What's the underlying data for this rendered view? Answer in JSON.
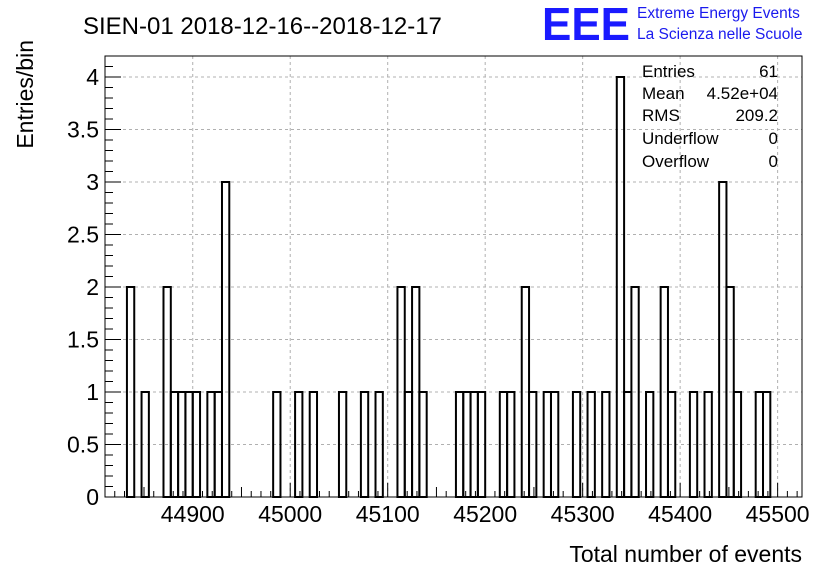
{
  "logo": {
    "mark": "EEE",
    "line1": "Extreme Energy Events",
    "line2": "La Scienza nelle Scuole",
    "color": "#1a1aff"
  },
  "stats": {
    "entries_label": "Entries",
    "entries_value": "61",
    "mean_label": "Mean",
    "mean_value": "4.52e+04",
    "rms_label": "RMS",
    "rms_value": "209.2",
    "underflow_label": "Underflow",
    "underflow_value": "0",
    "overflow_label": "Overflow",
    "overflow_value": "0"
  },
  "chart_data": {
    "type": "bar",
    "title": "SIEN-01 2018-12-16--2018-12-17",
    "xlabel": "Total number of events",
    "ylabel": "Entries/bin",
    "xlim": [
      44810,
      45525
    ],
    "ylim": [
      0,
      4.2
    ],
    "grid": true,
    "xticks": [
      44900,
      45000,
      45100,
      45200,
      45300,
      45400,
      45500
    ],
    "xtick_labels": [
      "44900",
      "45000",
      "45100",
      "45200",
      "45300",
      "45400",
      "45500"
    ],
    "yticks": [
      0,
      0.5,
      1,
      1.5,
      2,
      2.5,
      3,
      3.5,
      4
    ],
    "ytick_labels": [
      "0",
      "0.5",
      "1",
      "1.5",
      "2",
      "2.5",
      "3",
      "3.5",
      "4"
    ],
    "bins": {
      "low": 44825,
      "width": 7.5,
      "counts": [
        0,
        2,
        0,
        1,
        0,
        0,
        2,
        1,
        1,
        1,
        1,
        0,
        1,
        1,
        3,
        0,
        0,
        0,
        0,
        0,
        0,
        1,
        0,
        0,
        1,
        0,
        1,
        0,
        0,
        0,
        1,
        0,
        0,
        1,
        0,
        1,
        0,
        0,
        2,
        1,
        2,
        1,
        0,
        0,
        0,
        0,
        1,
        1,
        1,
        1,
        0,
        0,
        1,
        1,
        0,
        2,
        1,
        0,
        1,
        1,
        0,
        0,
        1,
        0,
        1,
        0,
        1,
        0,
        4,
        1,
        2,
        0,
        1,
        0,
        2,
        1,
        0,
        0,
        1,
        0,
        1,
        0,
        3,
        2,
        1,
        0,
        0,
        1,
        1,
        0
      ]
    }
  }
}
